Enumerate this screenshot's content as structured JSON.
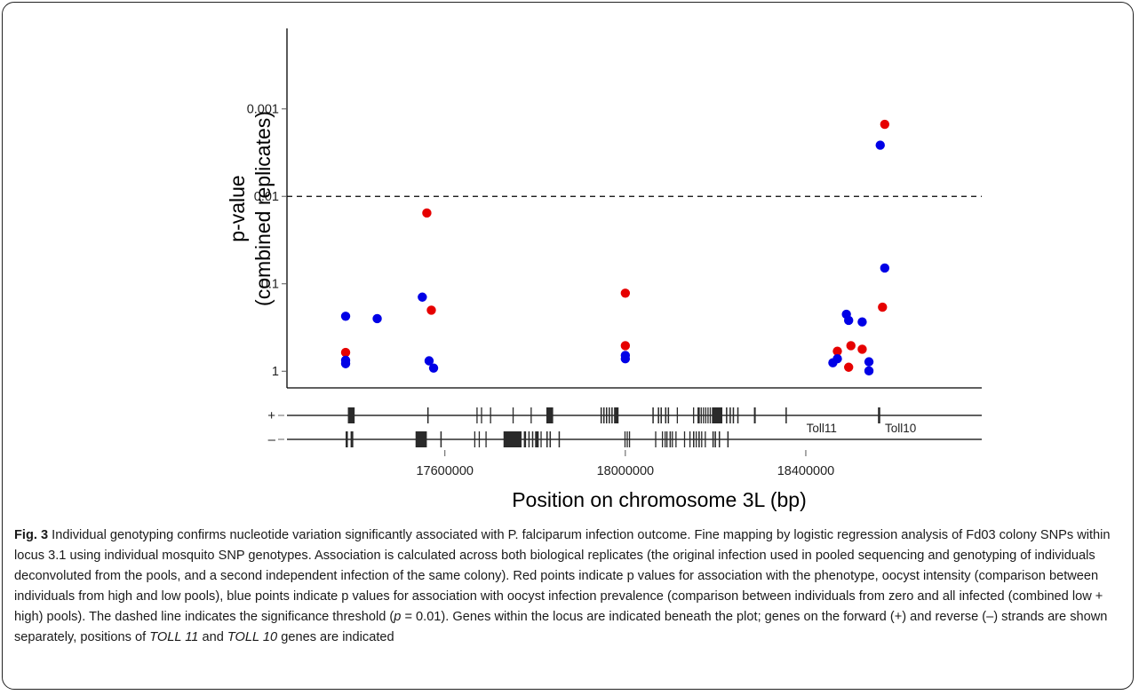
{
  "chart_data": {
    "type": "scatter",
    "xlabel": "Position on chromosome 3L (bp)",
    "ylabel": "p-value\n(combined replicates)",
    "y_scale": "log-reversed",
    "x_range": [
      17250000,
      18790000
    ],
    "ylim": [
      1.55,
      0.00012
    ],
    "x_ticks": [
      17600000,
      18000000,
      18400000
    ],
    "y_ticks": [
      {
        "value": 1,
        "label": "1"
      },
      {
        "value": 0.1,
        "label": "0.1"
      },
      {
        "value": 0.01,
        "label": "0.01"
      },
      {
        "value": 0.001,
        "label": "0.001"
      }
    ],
    "threshold": 0.01,
    "grid": false,
    "legend": "none",
    "series": [
      {
        "color": "#e60000",
        "points": [
          [
            17380000,
            0.61
          ],
          [
            17560000,
            0.0155
          ],
          [
            17570000,
            0.2
          ],
          [
            18000000,
            0.128
          ],
          [
            18000000,
            0.51
          ],
          [
            18470000,
            0.59
          ],
          [
            18495000,
            0.9
          ],
          [
            18500000,
            0.51
          ],
          [
            18525000,
            0.56
          ],
          [
            18570000,
            0.185
          ],
          [
            18575000,
            0.0015
          ]
        ]
      },
      {
        "color": "#0000e6",
        "points": [
          [
            17380000,
            0.235
          ],
          [
            17380000,
            0.75
          ],
          [
            17380000,
            0.82
          ],
          [
            17450000,
            0.25
          ],
          [
            17550000,
            0.142
          ],
          [
            17565000,
            0.76
          ],
          [
            17575000,
            0.92
          ],
          [
            18000000,
            0.66
          ],
          [
            18000000,
            0.72
          ],
          [
            18460000,
            0.8
          ],
          [
            18470000,
            0.72
          ],
          [
            18490000,
            0.223
          ],
          [
            18495000,
            0.262
          ],
          [
            18525000,
            0.273
          ],
          [
            18540000,
            0.78
          ],
          [
            18540000,
            0.99
          ],
          [
            18565000,
            0.0026
          ],
          [
            18575000,
            0.066
          ]
        ]
      }
    ],
    "gene_tracks": [
      {
        "label": "+",
        "genes": [
          [
            17385000,
            17400000
          ],
          [
            17561000,
            17564000
          ],
          [
            17670000,
            17672000
          ],
          [
            17680000,
            17682000
          ],
          [
            17700000,
            17702000
          ],
          [
            17750000,
            17751000
          ],
          [
            17790000,
            17792000
          ],
          [
            17825000,
            17840000
          ],
          [
            17945000,
            17948000
          ],
          [
            17951000,
            17954000
          ],
          [
            17957000,
            17960000
          ],
          [
            17963000,
            17966000
          ],
          [
            17969000,
            17972000
          ],
          [
            17975000,
            17985000
          ],
          [
            18060000,
            18063000
          ],
          [
            18072000,
            18075000
          ],
          [
            18078000,
            18081000
          ],
          [
            18088000,
            18091000
          ],
          [
            18094000,
            18097000
          ],
          [
            18114000,
            18116000
          ],
          [
            18150000,
            18152000
          ],
          [
            18160000,
            18165000
          ],
          [
            18167000,
            18168000
          ],
          [
            18172000,
            18173000
          ],
          [
            18177000,
            18178000
          ],
          [
            18182000,
            18183000
          ],
          [
            18187000,
            18188000
          ],
          [
            18192000,
            18215000
          ],
          [
            18223000,
            18226000
          ],
          [
            18231000,
            18234000
          ],
          [
            18238000,
            18241000
          ],
          [
            18248000,
            18251000
          ],
          [
            18285000,
            18289000
          ],
          [
            18355000,
            18358000
          ],
          [
            18560000,
            18565000
          ]
        ],
        "annotations": [
          {
            "text": "Toll11",
            "x": 18435000
          },
          {
            "text": "Toll10",
            "x": 18610000
          }
        ]
      },
      {
        "label": "–",
        "genes": [
          [
            17380000,
            17385000
          ],
          [
            17391000,
            17397000
          ],
          [
            17535000,
            17560000
          ],
          [
            17590000,
            17593000
          ],
          [
            17665000,
            17667000
          ],
          [
            17675000,
            17677000
          ],
          [
            17690000,
            17692000
          ],
          [
            17730000,
            17770000
          ],
          [
            17775000,
            17780000
          ],
          [
            17785000,
            17788000
          ],
          [
            17793000,
            17796000
          ],
          [
            17800000,
            17808000
          ],
          [
            17812000,
            17814000
          ],
          [
            17825000,
            17828000
          ],
          [
            17832000,
            17835000
          ],
          [
            17852000,
            17855000
          ],
          [
            17998000,
            18000000
          ],
          [
            18003000,
            18005000
          ],
          [
            18008000,
            18010000
          ],
          [
            18066000,
            18068000
          ],
          [
            18081000,
            18083000
          ],
          [
            18087000,
            18089000
          ],
          [
            18091000,
            18093000
          ],
          [
            18098000,
            18101000
          ],
          [
            18103000,
            18105000
          ],
          [
            18111000,
            18113000
          ],
          [
            18130000,
            18132000
          ],
          [
            18142000,
            18144000
          ],
          [
            18150000,
            18153000
          ],
          [
            18156000,
            18158000
          ],
          [
            18162000,
            18165000
          ],
          [
            18168000,
            18170000
          ],
          [
            18176000,
            18178000
          ],
          [
            18193000,
            18196000
          ],
          [
            18198000,
            18201000
          ],
          [
            18207000,
            18210000
          ],
          [
            18226000,
            18229000
          ]
        ]
      }
    ]
  },
  "caption": {
    "label": "Fig. 3",
    "text_before_toll11": " Individual genotyping confirms nucleotide variation significantly associated with P. falciparum infection outcome. Fine mapping by logistic regression analysis of Fd03 colony SNPs within locus 3.1 using individual mosquito SNP genotypes. Association is calculated across both biological replicates (the original infection used in pooled sequencing and genotyping of individuals deconvoluted from the pools, and a second independent infection of the same colony). Red points indicate p values for association with the phenotype, oocyst intensity (comparison between individuals from high and low pools), blue points indicate p values for association with oocyst infection prevalence (comparison between individuals from zero and all infected (combined low + high) pools). The dashed line indicates the significance threshold (",
    "p_symbol": "p",
    "text_threshold": " = 0.01). Genes within the locus are indicated beneath the plot; genes on the forward (+) and reverse (–) strands are shown separately, positions of ",
    "toll11": "TOLL 11",
    "and_word": " and ",
    "toll10": "TOLL 10",
    "text_end": " genes are indicated"
  }
}
